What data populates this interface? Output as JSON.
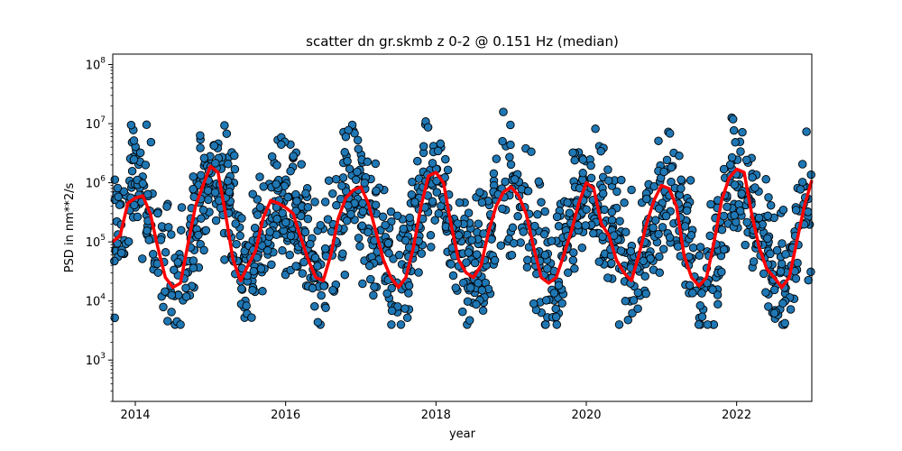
{
  "chart_data": {
    "type": "scatter",
    "title": "scatter dn gr.skmb z 0-2 @ 0.151 Hz (median)",
    "xlabel": "year",
    "ylabel": "PSD in nm**2/s",
    "x_unit": "decimal year",
    "xlim": [
      2013.7,
      2023.0
    ],
    "ylim": [
      200,
      150000000
    ],
    "y_scale": "log",
    "x_ticks": [
      2014,
      2016,
      2018,
      2020,
      2022
    ],
    "y_ticks": [
      {
        "value": 1000,
        "base": "10",
        "exp": "3"
      },
      {
        "value": 10000,
        "base": "10",
        "exp": "4"
      },
      {
        "value": 100000,
        "base": "10",
        "exp": "5"
      },
      {
        "value": 1000000,
        "base": "10",
        "exp": "6"
      },
      {
        "value": 10000000,
        "base": "10",
        "exp": "7"
      },
      {
        "value": 100000000,
        "base": "10",
        "exp": "8"
      }
    ],
    "grid": false,
    "series": [
      {
        "kind": "scatter",
        "color": "#1f77b4",
        "edge_color": "#000000",
        "seasonal_envelope": {
          "x": [
            2013.75,
            2013.9,
            2014.1,
            2014.3,
            2014.5,
            2014.65,
            2014.85,
            2015.05,
            2015.25,
            2015.45,
            2015.6,
            2015.8,
            2016.0,
            2016.25,
            2016.5,
            2016.7,
            2016.9,
            2017.05,
            2017.25,
            2017.5,
            2017.7,
            2017.9,
            2018.05,
            2018.25,
            2018.45,
            2018.7,
            2018.9,
            2019.05,
            2019.25,
            2019.45,
            2019.65,
            2019.85,
            2020.05,
            2020.25,
            2020.5,
            2020.7,
            2020.9,
            2021.05,
            2021.25,
            2021.5,
            2021.7,
            2021.9,
            2022.05,
            2022.25,
            2022.5,
            2022.7,
            2022.9
          ],
          "median": [
            120000,
            550000,
            600000,
            120000,
            18000,
            30000,
            500000,
            1900000,
            500000,
            25000,
            60000,
            450000,
            400000,
            120000,
            22000,
            300000,
            800000,
            450000,
            80000,
            17000,
            120000,
            1400000,
            1000000,
            90000,
            30000,
            80000,
            700000,
            800000,
            300000,
            20000,
            40000,
            300000,
            1000000,
            140000,
            50000,
            22000,
            300000,
            900000,
            300000,
            18000,
            30000,
            600000,
            1700000,
            300000,
            25000,
            20000,
            400000
          ],
          "spread_decades": 0.85
        }
      },
      {
        "kind": "line",
        "color": "#ff0000",
        "x": [
          2013.7,
          2013.8,
          2013.9,
          2014.0,
          2014.1,
          2014.2,
          2014.3,
          2014.4,
          2014.5,
          2014.6,
          2014.7,
          2014.8,
          2014.9,
          2015.0,
          2015.1,
          2015.2,
          2015.3,
          2015.4,
          2015.5,
          2015.6,
          2015.7,
          2015.8,
          2015.9,
          2016.0,
          2016.1,
          2016.2,
          2016.3,
          2016.4,
          2016.5,
          2016.6,
          2016.7,
          2016.8,
          2016.9,
          2017.0,
          2017.1,
          2017.2,
          2017.3,
          2017.4,
          2017.5,
          2017.6,
          2017.7,
          2017.8,
          2017.9,
          2018.0,
          2018.1,
          2018.2,
          2018.3,
          2018.4,
          2018.5,
          2018.6,
          2018.7,
          2018.8,
          2018.9,
          2019.0,
          2019.1,
          2019.2,
          2019.3,
          2019.4,
          2019.5,
          2019.6,
          2019.7,
          2019.8,
          2019.9,
          2020.0,
          2020.1,
          2020.2,
          2020.3,
          2020.4,
          2020.5,
          2020.6,
          2020.7,
          2020.8,
          2020.9,
          2021.0,
          2021.1,
          2021.2,
          2021.3,
          2021.4,
          2021.5,
          2021.6,
          2021.7,
          2021.8,
          2021.9,
          2022.0,
          2022.1,
          2022.2,
          2022.3,
          2022.4,
          2022.5,
          2022.6,
          2022.7,
          2022.8,
          2022.9,
          2023.0
        ],
        "y": [
          100000,
          130000,
          450000,
          550000,
          600000,
          300000,
          80000,
          25000,
          17000,
          20000,
          90000,
          400000,
          900000,
          1900000,
          1500000,
          300000,
          50000,
          22000,
          40000,
          70000,
          250000,
          500000,
          450000,
          380000,
          300000,
          120000,
          50000,
          25000,
          22000,
          60000,
          250000,
          550000,
          750000,
          850000,
          450000,
          150000,
          50000,
          25000,
          17000,
          25000,
          80000,
          400000,
          1300000,
          1500000,
          1000000,
          200000,
          50000,
          30000,
          25000,
          40000,
          150000,
          400000,
          700000,
          850000,
          600000,
          300000,
          80000,
          25000,
          20000,
          25000,
          60000,
          150000,
          450000,
          1000000,
          800000,
          200000,
          130000,
          50000,
          30000,
          22000,
          60000,
          200000,
          500000,
          900000,
          800000,
          400000,
          60000,
          25000,
          18000,
          25000,
          100000,
          500000,
          1200000,
          1700000,
          1500000,
          300000,
          80000,
          35000,
          25000,
          17000,
          25000,
          100000,
          400000,
          1100000
        ]
      }
    ]
  }
}
